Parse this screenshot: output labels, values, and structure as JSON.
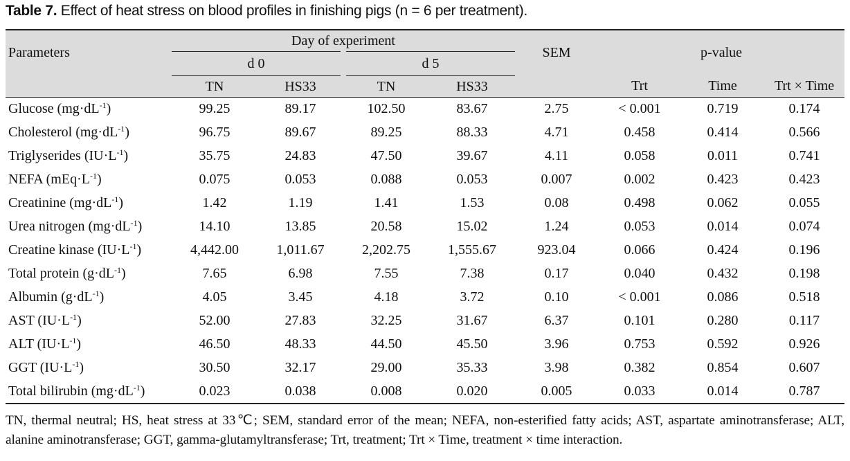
{
  "caption": {
    "label": "Table 7.",
    "text": " Effect of heat stress on blood profiles in finishing pigs (n = 6 per treatment)."
  },
  "header": {
    "parameters": "Parameters",
    "day_of_experiment": "Day of experiment",
    "d0": "d 0",
    "d5": "d 5",
    "sem": "SEM",
    "p_value": "p-value",
    "tn": "TN",
    "hs33": "HS33",
    "trt": "Trt",
    "time": "Time",
    "trt_x_time": "Trt × Time"
  },
  "rows": [
    {
      "name": "Glucose (mg·dL",
      "sup": "-1",
      "close": ")",
      "v": [
        "99.25",
        "89.17",
        "102.50",
        "83.67",
        "2.75",
        "< 0.001",
        "0.719",
        "0.174"
      ]
    },
    {
      "name": "Cholesterol (mg·dL",
      "sup": "-1",
      "close": ")",
      "v": [
        "96.75",
        "89.67",
        "89.25",
        "88.33",
        "4.71",
        "0.458",
        "0.414",
        "0.566"
      ]
    },
    {
      "name": "Triglyserides (IU·L",
      "sup": "-1",
      "close": ")",
      "v": [
        "35.75",
        "24.83",
        "47.50",
        "39.67",
        "4.11",
        "0.058",
        "0.011",
        "0.741"
      ]
    },
    {
      "name": "NEFA (mEq·L",
      "sup": "-1",
      "close": ")",
      "v": [
        "0.075",
        "0.053",
        "0.088",
        "0.053",
        "0.007",
        "0.002",
        "0.423",
        "0.423"
      ]
    },
    {
      "name": "Creatinine (mg·dL",
      "sup": "-1",
      "close": ")",
      "v": [
        "1.42",
        "1.19",
        "1.41",
        "1.53",
        "0.08",
        "0.498",
        "0.062",
        "0.055"
      ]
    },
    {
      "name": "Urea nitrogen (mg·dL",
      "sup": "-1",
      "close": ")",
      "v": [
        "14.10",
        "13.85",
        "20.58",
        "15.02",
        "1.24",
        "0.053",
        "0.014",
        "0.074"
      ]
    },
    {
      "name": "Creatine kinase (IU·L",
      "sup": "-1",
      "close": ")",
      "v": [
        "4,442.00",
        "1,011.67",
        "2,202.75",
        "1,555.67",
        "923.04",
        "0.066",
        "0.424",
        "0.196"
      ]
    },
    {
      "name": "Total protein (g·dL",
      "sup": "-1",
      "close": ")",
      "v": [
        "7.65",
        "6.98",
        "7.55",
        "7.38",
        "0.17",
        "0.040",
        "0.432",
        "0.198"
      ]
    },
    {
      "name": "Albumin (g·dL",
      "sup": "-1",
      "close": ")",
      "v": [
        "4.05",
        "3.45",
        "4.18",
        "3.72",
        "0.10",
        "< 0.001",
        "0.086",
        "0.518"
      ]
    },
    {
      "name": "AST (IU·L",
      "sup": "-1",
      "close": ")",
      "v": [
        "52.00",
        "27.83",
        "32.25",
        "31.67",
        "6.37",
        "0.101",
        "0.280",
        "0.117"
      ]
    },
    {
      "name": "ALT (IU·L",
      "sup": "-1",
      "close": ")",
      "v": [
        "46.50",
        "48.33",
        "44.50",
        "45.50",
        "3.96",
        "0.753",
        "0.592",
        "0.926"
      ]
    },
    {
      "name": "GGT (IU·L",
      "sup": "-1",
      "close": ")",
      "v": [
        "30.50",
        "32.17",
        "29.00",
        "35.33",
        "3.98",
        "0.382",
        "0.854",
        "0.607"
      ]
    },
    {
      "name": "Total bilirubin (mg·dL",
      "sup": "-1",
      "close": ")",
      "v": [
        "0.023",
        "0.038",
        "0.008",
        "0.020",
        "0.005",
        "0.033",
        "0.014",
        "0.787"
      ]
    }
  ],
  "footnote": "TN, thermal neutral; HS, heat stress at 33℃; SEM, standard error of the mean; NEFA, non-esterified fatty acids; AST, aspartate aminotransferase; ALT, alanine aminotransferase; GGT, gamma-glutamyltransferase; Trt, treatment; Trt × Time, treatment × time interaction."
}
